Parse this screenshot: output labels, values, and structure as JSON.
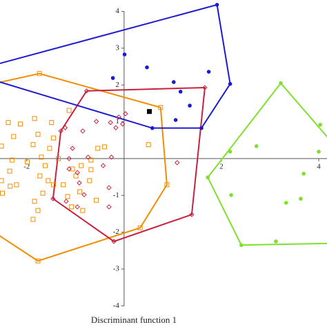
{
  "chart_data": {
    "type": "scatter",
    "x_label": "Discriminant function 1",
    "xlim": [
      -2.55,
      4.17
    ],
    "ylim": [
      -4.2,
      4.31
    ],
    "xticks": [
      -2,
      2,
      4
    ],
    "yticks": [
      -4,
      -3,
      -2,
      -1,
      1,
      2,
      3,
      4
    ],
    "series": [
      {
        "color": "#f28c00",
        "marker": "open-square",
        "x": [
          -1.74,
          -2.38,
          -2.27,
          -2.52,
          -2.3,
          -2.35,
          -2.52,
          -2.34,
          -2.5,
          -2.21,
          -1.84,
          -1.77,
          -1.87,
          -1.7,
          -1.62,
          -1.49,
          -1.45,
          -1.53,
          -1.35,
          -1.73,
          -1.56,
          -1.45,
          -1.67,
          -1.84,
          -1.77,
          -1.87,
          -1.25,
          -1.16,
          -0.99,
          -0.88,
          -0.71,
          -0.54,
          -0.4,
          -0.68,
          -1.08,
          -0.91,
          -0.57,
          -0.68,
          -0.85,
          0.75,
          0.5,
          0.88,
          0.33,
          -1.77,
          -1.13,
          -1.06,
          -2.13,
          -1.99
        ],
        "values": [
          2.31,
          0.98,
          0.6,
          0.34,
          -0.04,
          -0.34,
          -0.6,
          -0.75,
          -0.94,
          -0.71,
          1.09,
          0.66,
          0.38,
          0.04,
          -0.19,
          0.98,
          0.56,
          0.28,
          0,
          -0.47,
          -0.6,
          -0.71,
          -0.94,
          -1.16,
          -1.41,
          -1.65,
          -0.71,
          -1.03,
          -0.47,
          -0.19,
          -0.6,
          0.28,
          0.32,
          -0.04,
          -1.31,
          -0.9,
          -1.13,
          -0.3,
          -1.41,
          1.39,
          0.38,
          -0.71,
          -1.88,
          -2.78,
          1.31,
          -0.28,
          0.94,
          -0.09
        ],
        "hull_x": [
          -2.6,
          -1.74,
          0.75,
          0.88,
          0.33,
          -1.77,
          -2.6
        ],
        "hull_y": [
          2.06,
          2.31,
          1.39,
          -0.71,
          -1.88,
          -2.78,
          -2.06
        ]
      },
      {
        "color": "#c8203c",
        "marker": "open-diamond",
        "x": [
          -0.77,
          1.66,
          1.39,
          -0.21,
          -1.46,
          -1.3,
          -1.21,
          -0.57,
          -0.11,
          0.03,
          -0.03,
          -0.17,
          -0.28,
          -0.85,
          -1.06,
          -1.13,
          -1.13,
          -0.96,
          -0.92,
          -1.19,
          -0.96,
          -0.74,
          -0.43,
          -0.31,
          -0.31,
          -0.26,
          1.09,
          -0.82
        ],
        "values": [
          1.84,
          1.93,
          -1.52,
          -2.25,
          -1.09,
          0.75,
          0.84,
          1.01,
          1.13,
          1.22,
          0.94,
          0.84,
          0.98,
          0.75,
          0.28,
          0,
          -0.28,
          -0.38,
          -0.66,
          -1.16,
          -1.31,
          0.04,
          -0.19,
          -0.79,
          -1.31,
          0.04,
          -0.11,
          -0.98
        ],
        "hull_x": [
          -0.77,
          1.66,
          1.39,
          -0.21,
          -1.46,
          -1.3,
          -0.77
        ],
        "hull_y": [
          1.84,
          1.93,
          -1.52,
          -2.25,
          -1.09,
          0.75,
          1.84
        ]
      },
      {
        "color": "#1a1ad0",
        "marker": "dot",
        "x": [
          1.91,
          0.01,
          0.47,
          -0.23,
          1.02,
          1.74,
          1.16,
          2.18,
          1.35,
          1.06,
          1.59,
          0.58
        ],
        "values": [
          4.18,
          2.83,
          2.48,
          2.19,
          2.08,
          2.36,
          1.82,
          2.03,
          1.44,
          1.05,
          0.83,
          0.83
        ],
        "hull_x": [
          -2.6,
          1.91,
          2.18,
          1.59,
          0.58,
          -2.6
        ],
        "hull_y": [
          2.57,
          4.18,
          2.03,
          0.83,
          0.83,
          2.1
        ]
      },
      {
        "color": "#7ee02a",
        "marker": "dot",
        "x": [
          3.22,
          4.03,
          4.0,
          2.72,
          2.18,
          3.69,
          1.72,
          2.2,
          3.33,
          3.63,
          3.12,
          2.41
        ],
        "values": [
          2.05,
          0.92,
          0.19,
          0.34,
          0.19,
          -0.41,
          -0.51,
          -0.99,
          -1.2,
          -1.09,
          -2.25,
          -2.35
        ],
        "hull_x": [
          3.22,
          4.3,
          4.3,
          2.41,
          1.72,
          3.22
        ],
        "hull_y": [
          2.05,
          0.4,
          -2.3,
          -2.35,
          -0.51,
          2.05
        ]
      },
      {
        "color": "#000000",
        "marker": "filled-square",
        "x": [
          0.52
        ],
        "values": [
          1.28
        ]
      }
    ]
  }
}
